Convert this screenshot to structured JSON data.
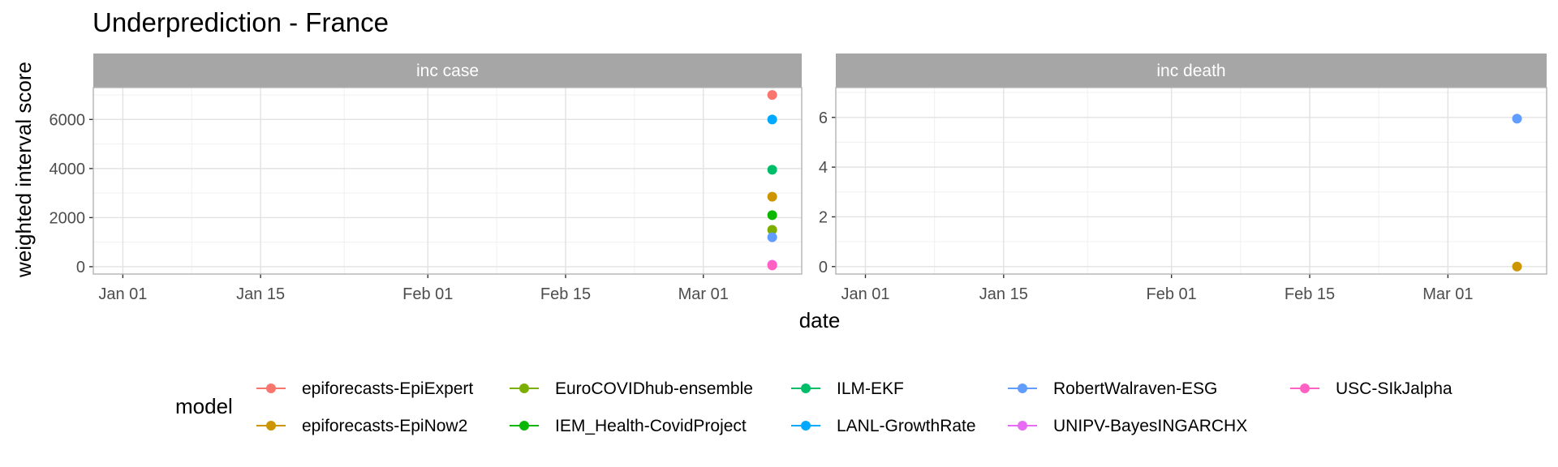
{
  "chart_data": {
    "type": "scatter",
    "title": "Underprediction - France",
    "xlabel": "date",
    "ylabel": "weighted interval score",
    "x_ticks": [
      "Jan 01",
      "Jan 15",
      "Feb 01",
      "Feb 15",
      "Mar 01"
    ],
    "x_tick_days": [
      0,
      14,
      31,
      45,
      59
    ],
    "xlim_days": [
      -3,
      69
    ],
    "grid": true,
    "legend": {
      "title": "model",
      "position": "bottom"
    },
    "series": [
      {
        "name": "epiforecasts-EpiExpert",
        "color": "#F8766D"
      },
      {
        "name": "epiforecasts-EpiNow2",
        "color": "#CD9600"
      },
      {
        "name": "EuroCOVIDhub-ensemble",
        "color": "#7CAE00"
      },
      {
        "name": "IEM_Health-CovidProject",
        "color": "#0CB702"
      },
      {
        "name": "ILM-EKF",
        "color": "#00BE67"
      },
      {
        "name": "LANL-GrowthRate",
        "color": "#00A9FF"
      },
      {
        "name": "RobertWalraven-ESG",
        "color": "#619CFF"
      },
      {
        "name": "UNIPV-BayesINGARCHX",
        "color": "#E76BF3"
      },
      {
        "name": "USC-SIkJalpha",
        "color": "#FF61C3"
      }
    ],
    "facets": [
      {
        "label": "inc case",
        "ylim": [
          -300,
          7300
        ],
        "y_ticks": [
          0,
          2000,
          4000,
          6000
        ],
        "y_tick_labels": [
          "0",
          "2000",
          "4000",
          "6000"
        ],
        "y_minor": [
          1000,
          3000,
          5000,
          7000
        ],
        "points": [
          {
            "series": "epiforecasts-EpiExpert",
            "x_day": 66,
            "y": 7000
          },
          {
            "series": "LANL-GrowthRate",
            "x_day": 66,
            "y": 6000
          },
          {
            "series": "ILM-EKF",
            "x_day": 66,
            "y": 3950
          },
          {
            "series": "epiforecasts-EpiNow2",
            "x_day": 66,
            "y": 2850
          },
          {
            "series": "IEM_Health-CovidProject",
            "x_day": 66,
            "y": 2100
          },
          {
            "series": "EuroCOVIDhub-ensemble",
            "x_day": 66,
            "y": 1500
          },
          {
            "series": "RobertWalraven-ESG",
            "x_day": 66,
            "y": 1200
          },
          {
            "series": "UNIPV-BayesINGARCHX",
            "x_day": 66,
            "y": 80
          },
          {
            "series": "USC-SIkJalpha",
            "x_day": 66,
            "y": 50
          }
        ]
      },
      {
        "label": "inc death",
        "ylim": [
          -0.3,
          7.2
        ],
        "y_ticks": [
          0,
          2,
          4,
          6
        ],
        "y_tick_labels": [
          "0",
          "2",
          "4",
          "6"
        ],
        "y_minor": [
          1,
          3,
          5,
          7
        ],
        "points": [
          {
            "series": "RobertWalraven-ESG",
            "x_day": 66,
            "y": 5.95
          },
          {
            "series": "epiforecasts-EpiNow2",
            "x_day": 66,
            "y": 0
          }
        ]
      }
    ]
  }
}
